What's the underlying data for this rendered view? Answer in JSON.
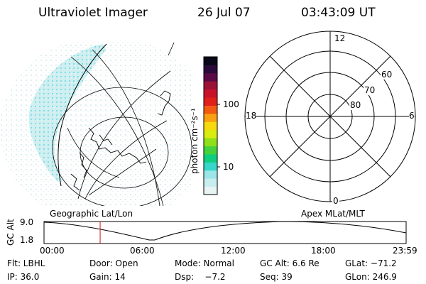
{
  "header": {
    "instrument": "Ultraviolet Imager",
    "date": "26 Jul 07",
    "time": "03:43:09 UT"
  },
  "colorbar": {
    "unit_label": "photon cm⁻²s⁻¹",
    "tick_100": "100",
    "tick_10": "10",
    "colors": [
      "#e8f4f4",
      "#c8eef0",
      "#9be6e8",
      "#37d6c8",
      "#0fcf7f",
      "#46d23c",
      "#8fe01a",
      "#d8ec10",
      "#f6d90e",
      "#f8a010",
      "#f25a12",
      "#e0201a",
      "#c8142a",
      "#9b1236",
      "#5a0a44",
      "#2a0a3a",
      "#080818"
    ]
  },
  "geo_map": {
    "label": "Geographic Lat/Lon"
  },
  "polar_plot": {
    "label": "Apex MLat/MLT",
    "mlt_12": "12",
    "mlt_18": "18",
    "mlt_6": "6",
    "mlt_0": "0",
    "lat_60": "60",
    "lat_70": "70",
    "lat_80": "80"
  },
  "altitude_plot": {
    "ylabel": "GC Alt",
    "ytick_top": "9.0",
    "ytick_bottom": "1.8",
    "xticks": [
      "00:00",
      "06:00",
      "12:00",
      "18:00",
      "23:59"
    ],
    "current_time_fraction": 0.155
  },
  "footer": {
    "flt": "Flt: LBHL",
    "door": "Door: Open",
    "mode": "Mode: Normal",
    "gc_alt": "GC Alt: 6.6 Re",
    "glat": "GLat: −71.2",
    "ip": "IP: 36.0",
    "gain": "Gain: 14",
    "dsp": "Dsp:    −7.2",
    "seq": "Seq: 39",
    "glon": "GLon: 246.9"
  }
}
